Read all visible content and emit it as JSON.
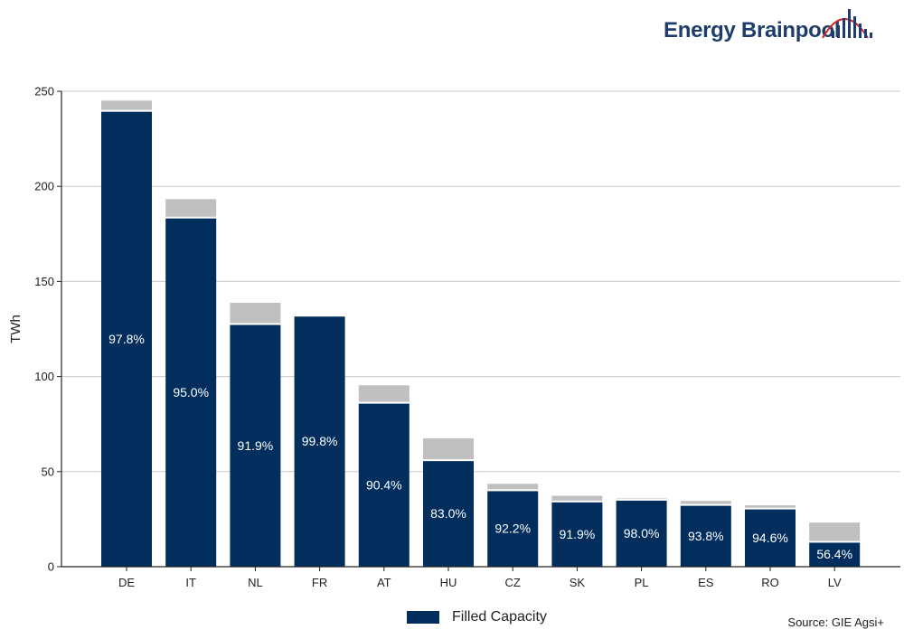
{
  "brand": {
    "name": "Energy Brainpool"
  },
  "legend": {
    "label": "Filled Capacity"
  },
  "source": "Source: GIE Agsi+",
  "colors": {
    "filled": "#012e5d",
    "unfilled": "#c0c0c0",
    "grid": "#c8c8c8",
    "brand": "#1f3d6b",
    "logo_red": "#d2232a"
  },
  "chart_data": {
    "type": "bar",
    "stacked": true,
    "title": "",
    "xlabel": "",
    "ylabel": "TWh",
    "ylim": [
      0,
      250
    ],
    "yticks": [
      0,
      50,
      100,
      150,
      200,
      250
    ],
    "grid": true,
    "legend_position": "bottom",
    "categories": [
      "DE",
      "IT",
      "NL",
      "FR",
      "AT",
      "HU",
      "CZ",
      "SK",
      "PL",
      "ES",
      "RO",
      "LV"
    ],
    "series": [
      {
        "name": "Filled Capacity",
        "values": [
          239.7,
          183.6,
          127.6,
          132.0,
          86.2,
          56.0,
          40.2,
          34.3,
          35.2,
          32.5,
          30.6,
          13.1
        ]
      },
      {
        "values": [
          5.4,
          9.7,
          11.2,
          0.3,
          9.2,
          11.5,
          3.4,
          3.0,
          0.7,
          2.1,
          1.7,
          10.1
        ]
      }
    ],
    "data_labels": [
      "97.8%",
      "95.0%",
      "91.9%",
      "99.8%",
      "90.4%",
      "83.0%",
      "92.2%",
      "91.9%",
      "98.0%",
      "93.8%",
      "94.6%",
      "56.4%"
    ]
  }
}
